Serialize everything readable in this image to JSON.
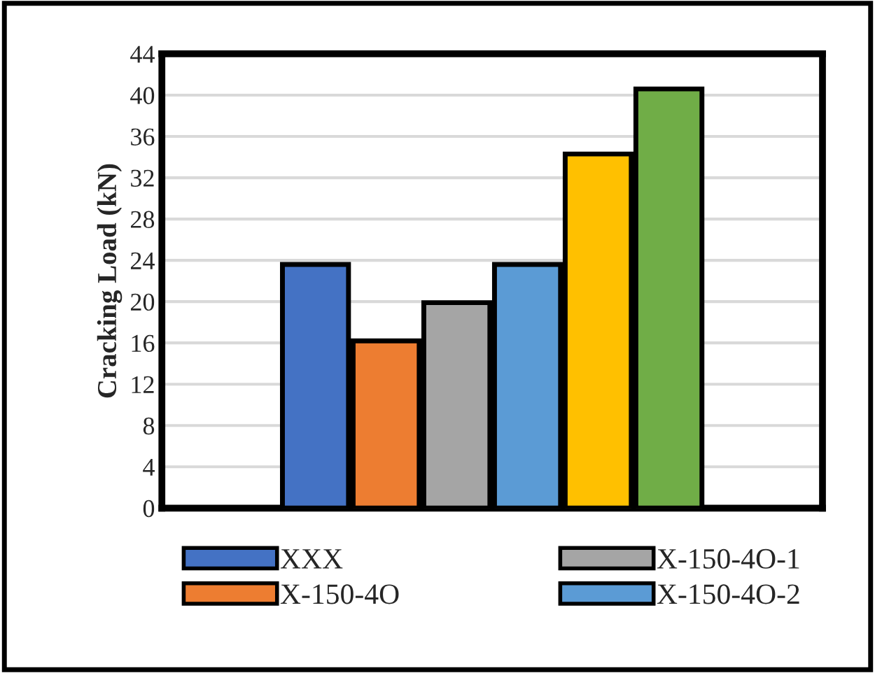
{
  "chart_data": {
    "type": "bar",
    "ylabel": "Cracking Load (kN)",
    "categories": [
      null
    ],
    "series": [
      {
        "name": "XXX",
        "color": "#4472c4",
        "values": [
          23.6
        ]
      },
      {
        "name": "X-150-4O",
        "color": "#ed7d31",
        "values": [
          16.2
        ]
      },
      {
        "name": "X-150-4O-1",
        "color": "#a5a5a5",
        "values": [
          19.9
        ]
      },
      {
        "name": "X-150-4O-2",
        "color": "#5b9bd5",
        "values": [
          23.6
        ]
      },
      {
        "color": "#ffc000",
        "values": [
          34.3
        ]
      },
      {
        "color": "#70ad47",
        "values": [
          40.6
        ]
      }
    ],
    "ylim": [
      0,
      44
    ],
    "yticks": [
      0,
      4,
      8,
      12,
      16,
      20,
      24,
      28,
      32,
      36,
      40,
      44
    ],
    "grid": "y",
    "legend": "bottom"
  }
}
